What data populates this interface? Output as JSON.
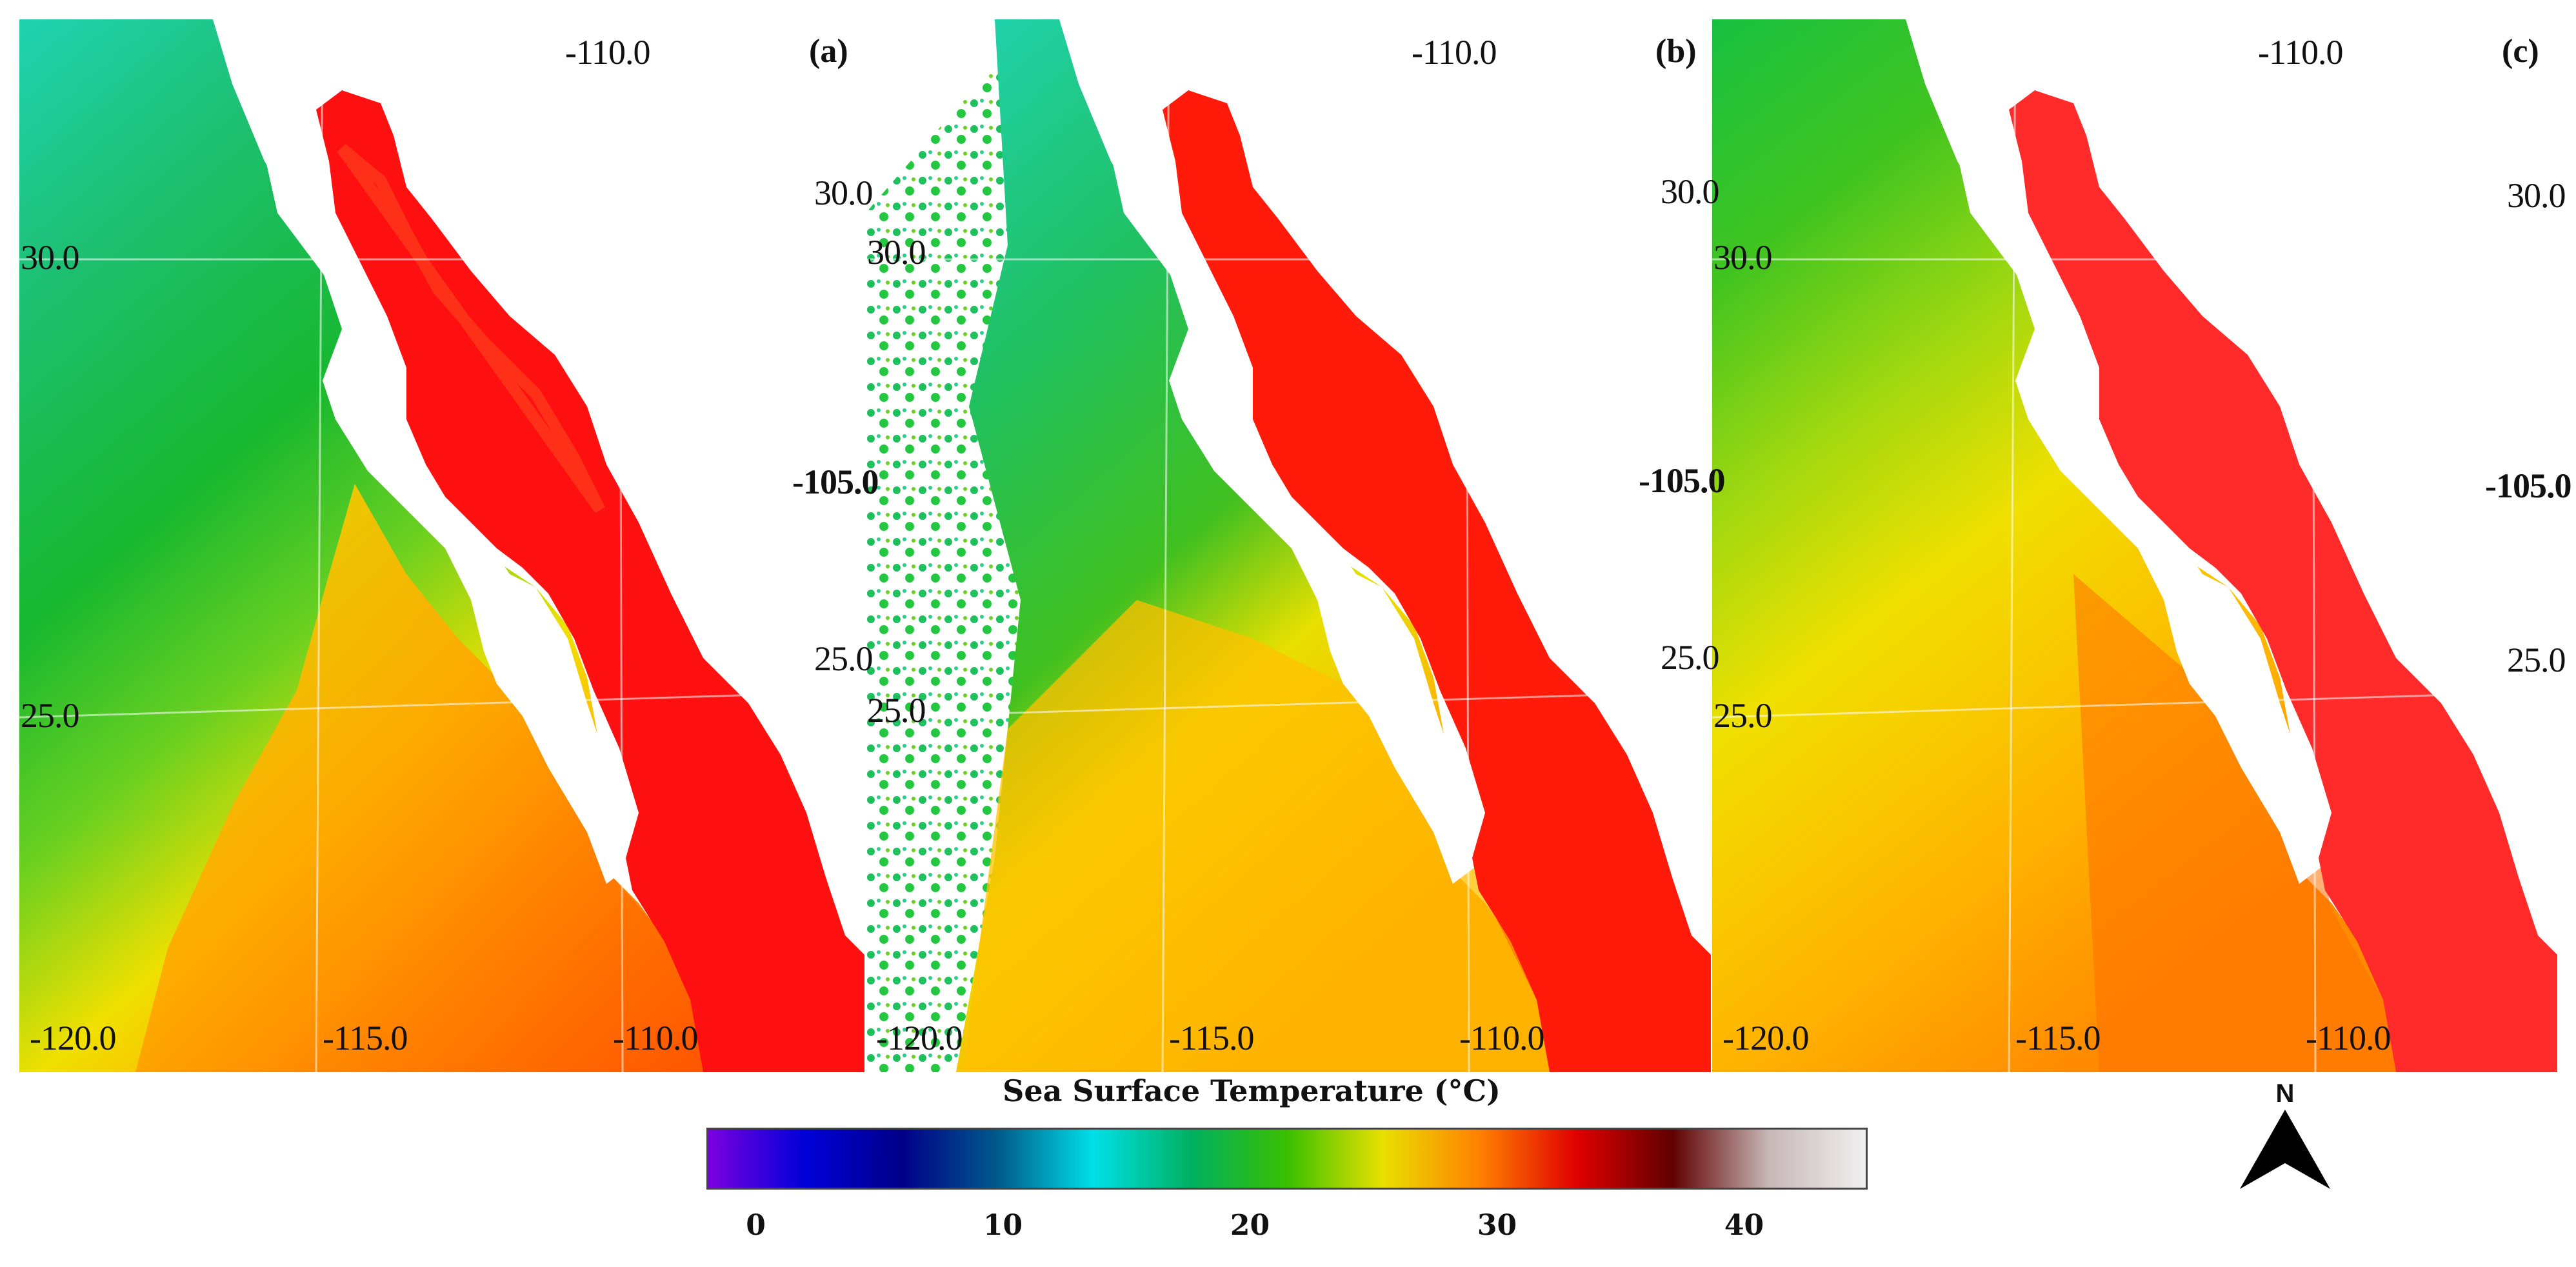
{
  "panels": [
    {
      "id": "a",
      "label": "(a)",
      "lat_labels": [
        "30.0",
        "25.0"
      ],
      "lon_labels_bottom": [
        "-120.0",
        "-115.0",
        "-110.0"
      ],
      "lon_label_top": "-110.0",
      "side_labels": []
    },
    {
      "id": "b",
      "label": "(b)",
      "lat_labels": [
        "30.0",
        "25.0"
      ],
      "lon_labels_bottom": [
        "-120.0",
        "-115.0",
        "-110.0"
      ],
      "lon_label_top": "-110.0",
      "side_labels": [
        "30.0",
        "-105.0",
        "25.0"
      ]
    },
    {
      "id": "c",
      "label": "(c)",
      "lat_labels": [
        "30.0",
        "25.0"
      ],
      "lon_labels_bottom": [
        "-120.0",
        "-115.0",
        "-110.0"
      ],
      "lon_label_top": "-110.0",
      "side_labels": [
        "30.0",
        "-105.0",
        "25.0"
      ],
      "right_side_labels": [
        "30.0",
        "-105.0",
        "25.0"
      ]
    }
  ],
  "colorbar": {
    "title": "Sea Surface Temperature (°C)",
    "range": [
      -2,
      45
    ],
    "ticks": [
      "0",
      "10",
      "20",
      "30",
      "40"
    ],
    "colors": [
      "#7b00e0",
      "#0000d8",
      "#00008a",
      "#005a8a",
      "#00e0e8",
      "#00b060",
      "#3ac000",
      "#e8e000",
      "#ff8000",
      "#e00000",
      "#600000",
      "#c8b8b8",
      "#f0f0f0"
    ]
  },
  "north_arrow": {
    "label": "N"
  }
}
